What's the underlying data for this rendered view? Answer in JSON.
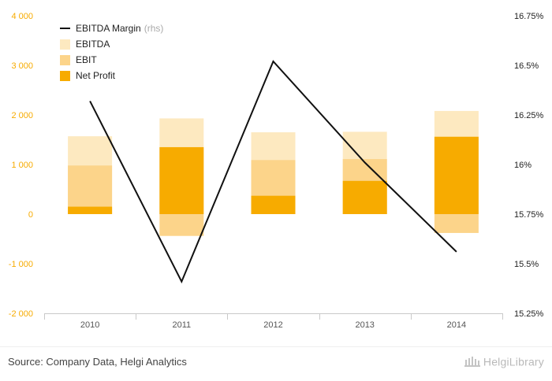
{
  "chart_data": {
    "type": "bar",
    "categories": [
      "2010",
      "2011",
      "2012",
      "2013",
      "2014"
    ],
    "series": [
      {
        "name": "EBITDA",
        "kind": "bar",
        "color": "#fde9c0",
        "values": [
          1570,
          1930,
          1650,
          1660,
          2080
        ]
      },
      {
        "name": "EBIT",
        "kind": "bar",
        "color": "#fcd48a",
        "values": [
          980,
          -440,
          1090,
          1110,
          -380
        ]
      },
      {
        "name": "Net Profit",
        "kind": "bar",
        "color": "#f7ab00",
        "values": [
          150,
          1350,
          370,
          670,
          1560
        ]
      },
      {
        "name": "EBITDA Margin",
        "suffix": "(rhs)",
        "kind": "line",
        "axis": "right",
        "color": "#111111",
        "values": [
          16.32,
          15.41,
          16.52,
          16.01,
          15.56
        ]
      }
    ],
    "y_left": {
      "min": -2000,
      "max": 4000,
      "ticks": [
        -2000,
        -1000,
        0,
        1000,
        2000,
        3000,
        4000
      ],
      "tick_labels": [
        "-2 000",
        "-1 000",
        "0",
        "1 000",
        "2 000",
        "3 000",
        "4 000"
      ],
      "color": "#f7ab00"
    },
    "y_right": {
      "min": 15.25,
      "max": 16.75,
      "ticks": [
        15.25,
        15.5,
        15.75,
        16,
        16.25,
        16.5,
        16.75
      ],
      "tick_labels": [
        "15.25%",
        "15.5%",
        "15.75%",
        "16%",
        "16.25%",
        "16.5%",
        "16.75%"
      ],
      "color": "#222222"
    },
    "legend_position": "top-left",
    "grid": false
  },
  "footer": {
    "source": "Source: Company Data, Helgi Analytics",
    "logo": "HelgiLibrary"
  }
}
